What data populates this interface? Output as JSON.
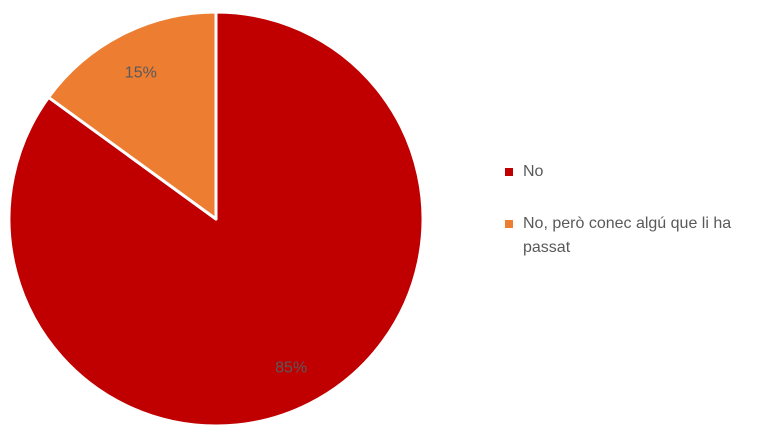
{
  "chart_data": {
    "type": "pie",
    "title": "",
    "start_angle_deg": 0,
    "direction": "clockwise",
    "legend_position": "right",
    "slices": [
      {
        "label": "No",
        "value": 85,
        "value_label": "85%",
        "color": "#C00000"
      },
      {
        "label": "No, però conec algú que li ha passat",
        "value": 15,
        "value_label": "15%",
        "color": "#ED7D31"
      }
    ]
  }
}
